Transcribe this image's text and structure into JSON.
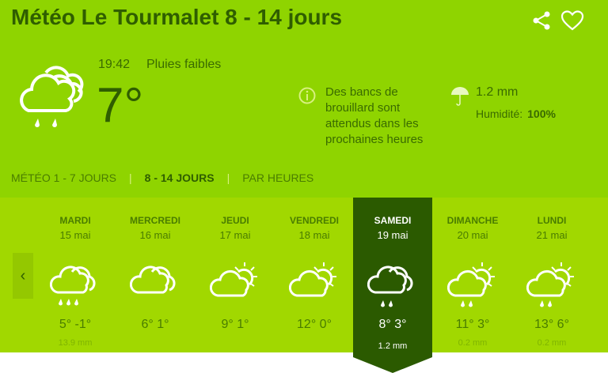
{
  "header": {
    "title": "Météo Le Tourmalet 8 - 14 jours",
    "share_icon": "share-icon",
    "favorite_icon": "heart-icon"
  },
  "current": {
    "time": "19:42",
    "condition": "Pluies faibles",
    "temperature": "7°",
    "icon": "cloud-rain-icon",
    "notice": "Des bancs de brouillard sont attendus dans les prochaines heures",
    "precipitation": "1.2 mm",
    "humidity_label": "Humidité:",
    "humidity": "100%"
  },
  "tabs": [
    {
      "label": "MÉTÉO 1 - 7 JOURS",
      "active": false
    },
    {
      "label": "8 - 14 JOURS",
      "active": true
    },
    {
      "label": "PAR HEURES",
      "active": false
    }
  ],
  "days": [
    {
      "name": "MARDI",
      "date": "15 mai",
      "temps": "5° -1°",
      "precip": "13.9 mm",
      "icon": "cloud-rain3",
      "selected": false
    },
    {
      "name": "MERCREDI",
      "date": "16 mai",
      "temps": "6° 1°",
      "precip": "",
      "icon": "cloud",
      "selected": false
    },
    {
      "name": "JEUDI",
      "date": "17 mai",
      "temps": "9° 1°",
      "precip": "",
      "icon": "sun-cloud",
      "selected": false
    },
    {
      "name": "VENDREDI",
      "date": "18 mai",
      "temps": "12° 0°",
      "precip": "",
      "icon": "sun-cloud",
      "selected": false
    },
    {
      "name": "SAMEDI",
      "date": "19 mai",
      "temps": "8° 3°",
      "precip": "1.2 mm",
      "icon": "cloud-rain2",
      "selected": true
    },
    {
      "name": "DIMANCHE",
      "date": "20 mai",
      "temps": "11° 3°",
      "precip": "0.2 mm",
      "icon": "sun-cloud-rain2",
      "selected": false
    },
    {
      "name": "LUNDI",
      "date": "21 mai",
      "temps": "13° 6°",
      "precip": "0.2 mm",
      "icon": "sun-cloud-rain2",
      "selected": false
    }
  ],
  "colors": {
    "header_bg": "#8fd400",
    "strip_bg": "#a1d800",
    "selected_bg": "#2b5a00"
  }
}
